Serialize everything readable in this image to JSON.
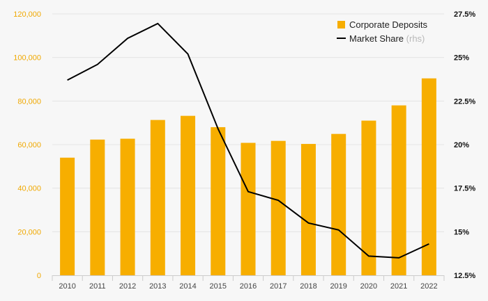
{
  "chart_data": {
    "type": "bar",
    "categories": [
      "2010",
      "2011",
      "2012",
      "2013",
      "2014",
      "2015",
      "2016",
      "2017",
      "2018",
      "2019",
      "2020",
      "2021",
      "2022"
    ],
    "series": [
      {
        "name": "Corporate Deposits",
        "kind": "bar",
        "axis": "left",
        "color": "#f7ae00",
        "values": [
          54000,
          62300,
          62700,
          71300,
          73200,
          68000,
          60800,
          61700,
          60300,
          64900,
          71000,
          78000,
          90400
        ]
      },
      {
        "name": "Market Share",
        "name_suffix": "(rhs)",
        "kind": "line",
        "axis": "right",
        "color": "#000000",
        "values": [
          23.7,
          24.6,
          26.1,
          26.95,
          25.2,
          20.9,
          17.3,
          16.8,
          15.5,
          15.1,
          13.6,
          13.5,
          14.3
        ]
      }
    ],
    "y_left": {
      "lim": [
        0,
        120000
      ],
      "ticks": [
        0,
        20000,
        40000,
        60000,
        80000,
        100000,
        120000
      ],
      "tick_labels": [
        "0",
        "20,000",
        "40,000",
        "60,000",
        "80,000",
        "100,000",
        "120,000"
      ],
      "color": "#f0a800"
    },
    "y_right": {
      "lim": [
        12.5,
        27.5
      ],
      "ticks": [
        12.5,
        15,
        17.5,
        20,
        22.5,
        25,
        27.5
      ],
      "tick_labels": [
        "12.5%",
        "15%",
        "17.5%",
        "20%",
        "22.5%",
        "25%",
        "27.5%"
      ],
      "color": "#111111"
    },
    "grid": true,
    "legend": "top-right",
    "title": "",
    "xlabel": "",
    "ylabel": ""
  }
}
